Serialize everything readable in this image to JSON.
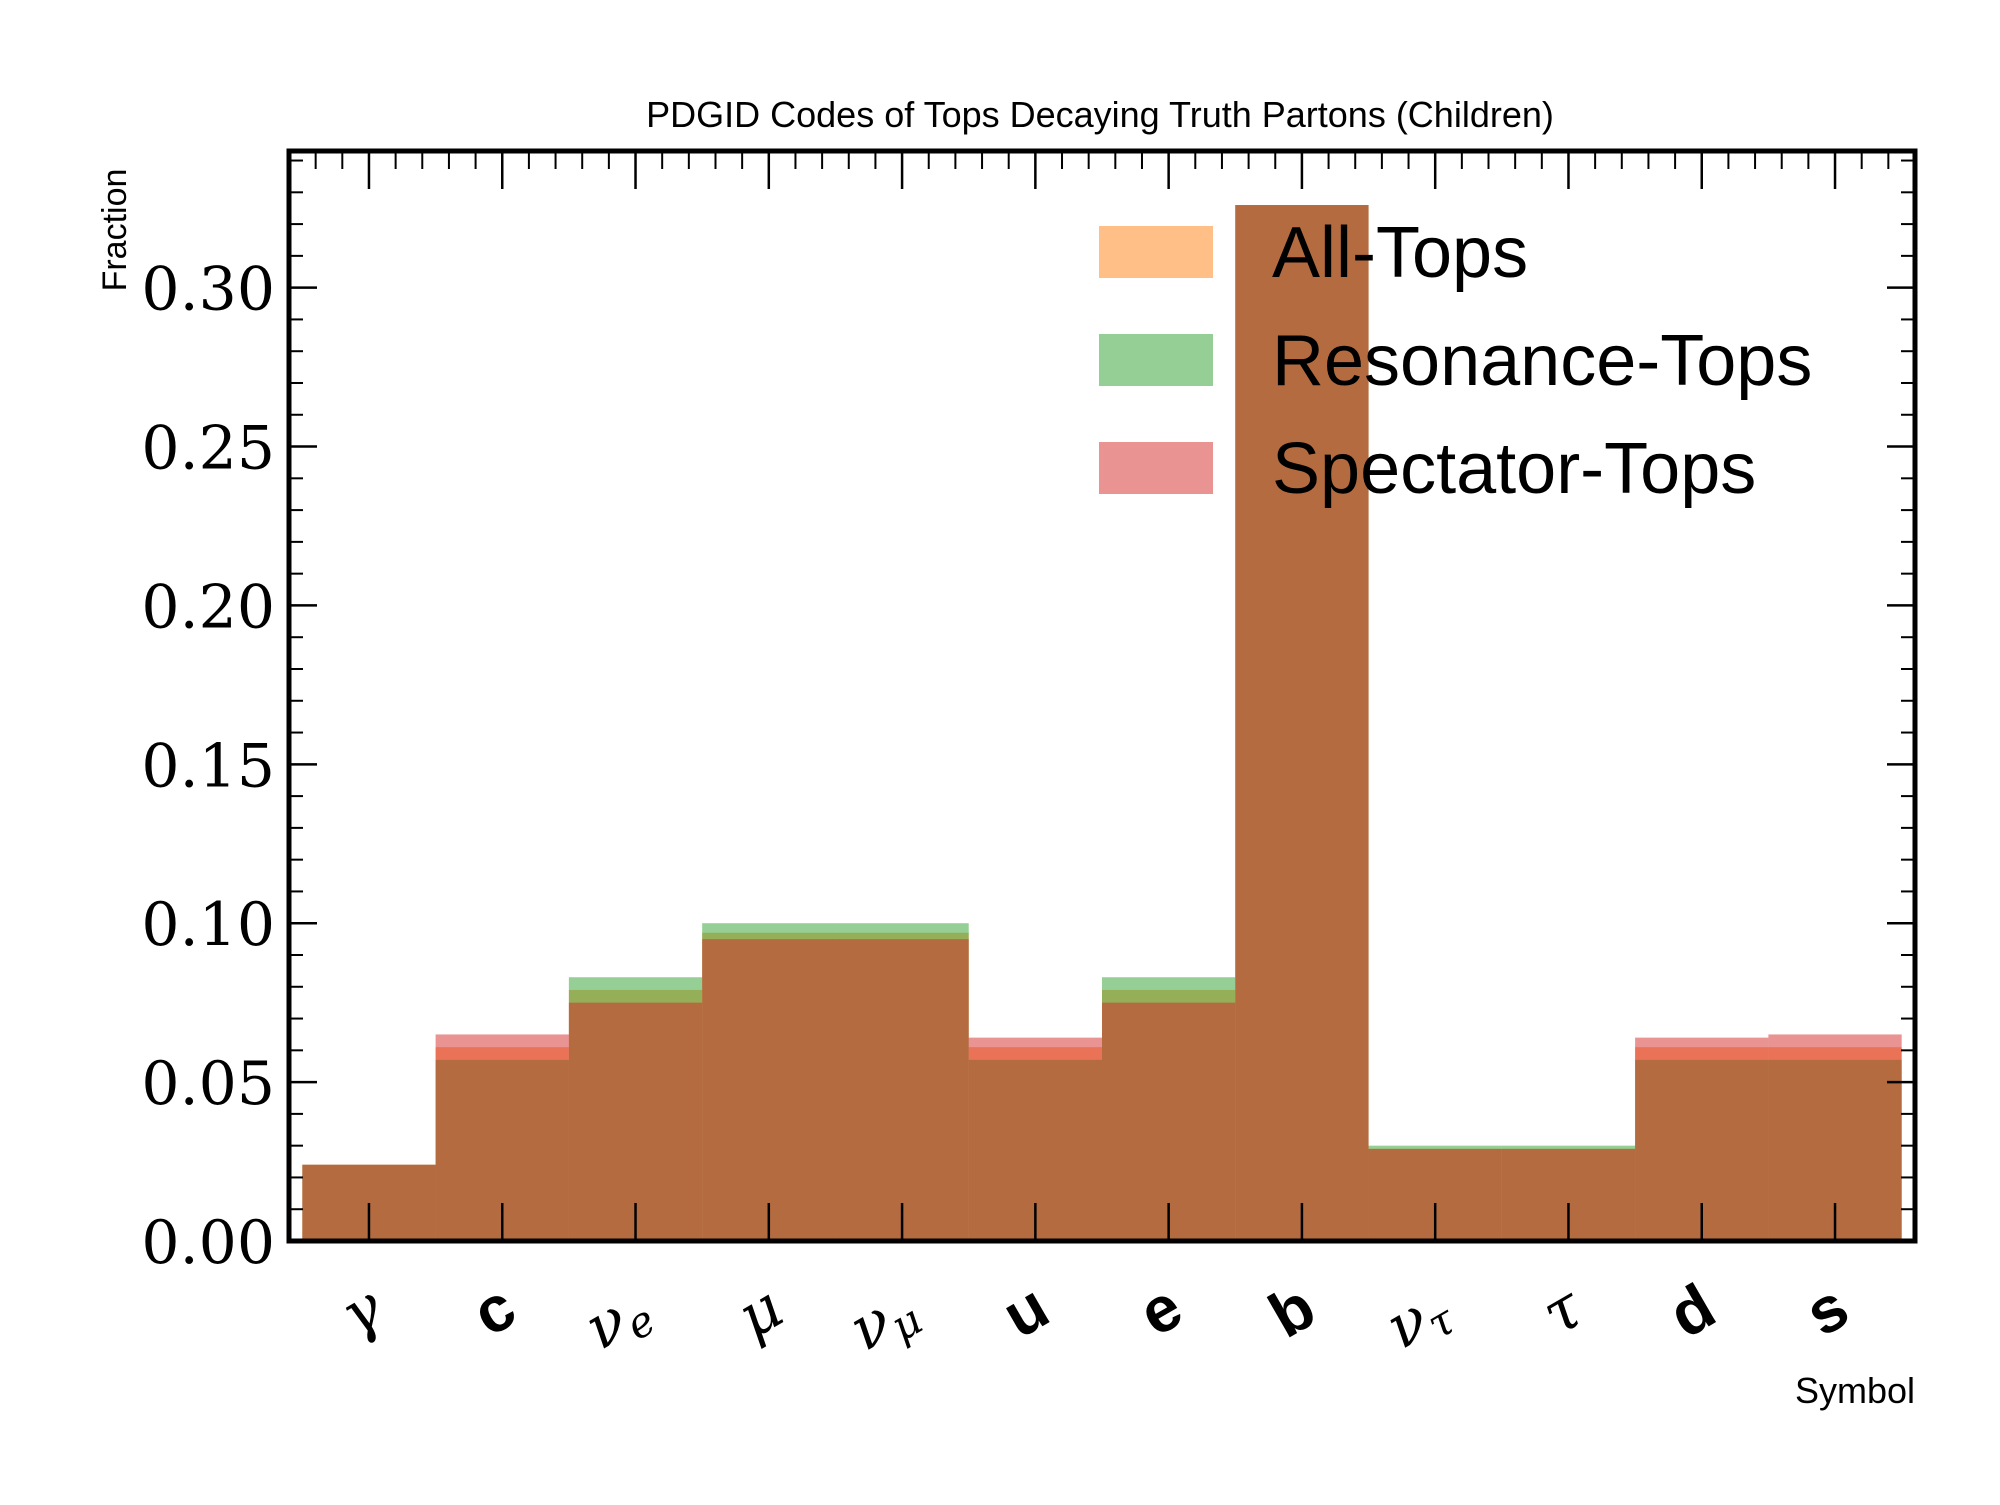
{
  "chart_data": {
    "type": "bar",
    "subtype": "overlaid-step-histogram",
    "title": "PDGID Codes of Tops Decaying Truth Partons (Children)",
    "xlabel": "Symbol",
    "ylabel": "Fraction",
    "ylim": [
      0,
      0.343
    ],
    "yticks": [
      "0.00",
      "0.05",
      "0.10",
      "0.15",
      "0.20",
      "0.25",
      "0.30"
    ],
    "categories": [
      {
        "base": "γ",
        "sub": "",
        "style": "math"
      },
      {
        "base": "c",
        "sub": "",
        "style": "bold"
      },
      {
        "base": "ν",
        "sub": "e",
        "style": "math"
      },
      {
        "base": "μ",
        "sub": "",
        "style": "math"
      },
      {
        "base": "ν",
        "sub": "μ",
        "style": "math"
      },
      {
        "base": "u",
        "sub": "",
        "style": "bold"
      },
      {
        "base": "e",
        "sub": "",
        "style": "bold"
      },
      {
        "base": "b",
        "sub": "",
        "style": "bold"
      },
      {
        "base": "ν",
        "sub": "τ",
        "style": "math"
      },
      {
        "base": "τ",
        "sub": "",
        "style": "math"
      },
      {
        "base": "d",
        "sub": "",
        "style": "bold"
      },
      {
        "base": "s",
        "sub": "",
        "style": "bold"
      }
    ],
    "series": [
      {
        "name": "All-Tops",
        "color": "#ff7f0e",
        "values": [
          0.024,
          0.061,
          0.079,
          0.097,
          0.097,
          0.061,
          0.079,
          0.326,
          0.029,
          0.029,
          0.061,
          0.061
        ]
      },
      {
        "name": "Resonance-Tops",
        "color": "#2ca02c",
        "values": [
          0.024,
          0.057,
          0.083,
          0.1,
          0.1,
          0.057,
          0.083,
          0.326,
          0.03,
          0.03,
          0.057,
          0.057
        ]
      },
      {
        "name": "Spectator-Tops",
        "color": "#d62728",
        "values": [
          0.024,
          0.065,
          0.075,
          0.095,
          0.095,
          0.064,
          0.075,
          0.326,
          0.029,
          0.029,
          0.064,
          0.065
        ]
      }
    ],
    "legend": {
      "position": "top-right"
    },
    "grid": false
  }
}
